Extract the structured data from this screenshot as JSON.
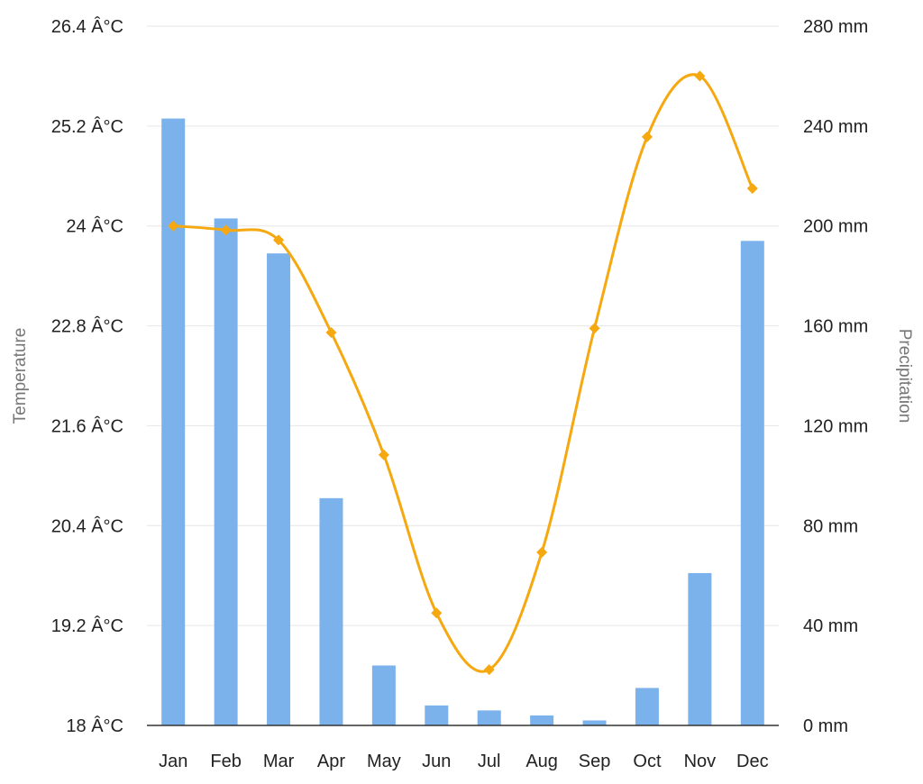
{
  "chart_data": {
    "type": "bar-line-combo",
    "categories": [
      "Jan",
      "Feb",
      "Mar",
      "Apr",
      "May",
      "Jun",
      "Jul",
      "Aug",
      "Sep",
      "Oct",
      "Nov",
      "Dec"
    ],
    "series": [
      {
        "type": "bar",
        "axis": "right",
        "color": "#7cb2ec",
        "values": [
          243,
          203,
          189,
          91,
          24,
          8,
          6,
          4,
          2,
          15,
          61,
          194
        ]
      },
      {
        "type": "line",
        "axis": "left",
        "color": "#f5a80f",
        "values": [
          24.0,
          23.95,
          23.83,
          22.72,
          21.25,
          19.35,
          18.67,
          20.08,
          22.77,
          25.07,
          25.8,
          24.45
        ]
      }
    ],
    "y_left": {
      "label": "Temperature",
      "range": [
        18,
        26.4
      ],
      "ticks": [
        "26.4 Â°C",
        "25.2 Â°C",
        "24 Â°C",
        "22.8 Â°C",
        "21.6 Â°C",
        "20.4 Â°C",
        "19.2 Â°C",
        "18 Â°C"
      ]
    },
    "y_right": {
      "label": "Precipitation",
      "range": [
        0,
        280
      ],
      "ticks": [
        "280 mm",
        "240 mm",
        "200 mm",
        "160 mm",
        "120 mm",
        "80 mm",
        "40 mm",
        "0 mm"
      ]
    },
    "grid": true,
    "gridColor": "#e6e6e6"
  }
}
